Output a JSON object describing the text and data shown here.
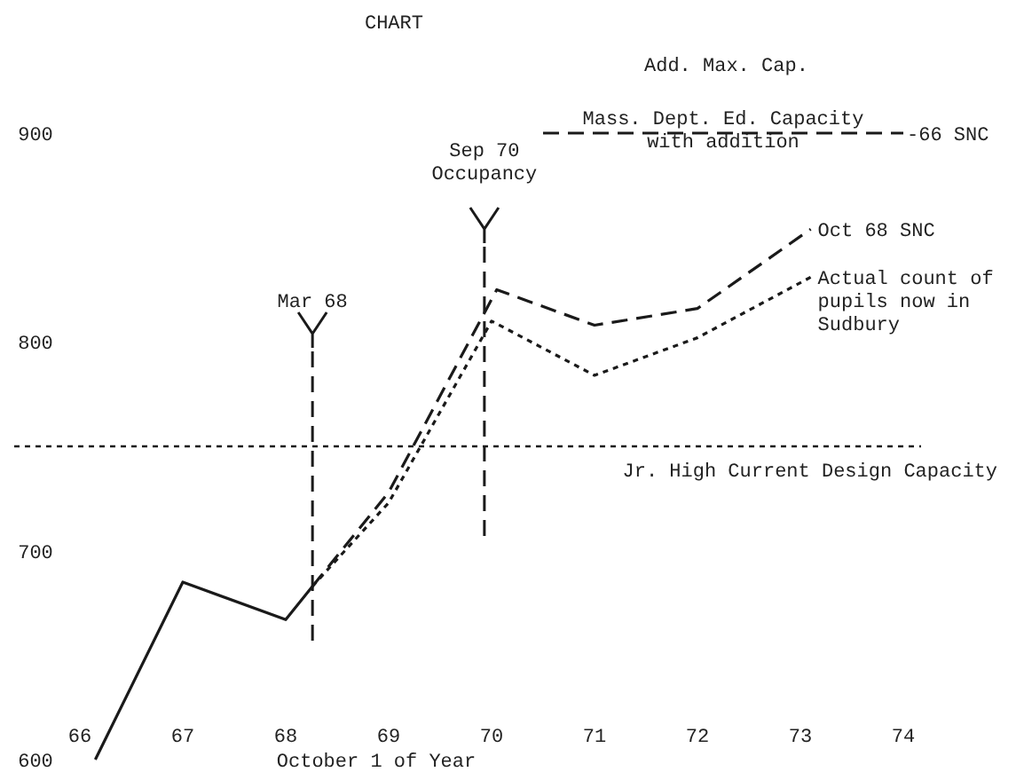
{
  "chart_data": {
    "type": "line",
    "title": "CHART",
    "xlabel": "October 1 of Year",
    "xlim": [
      66,
      74
    ],
    "ylim": [
      600,
      900
    ],
    "xticks": [
      {
        "value": 66,
        "label": "66"
      },
      {
        "value": 67,
        "label": "67"
      },
      {
        "value": 68,
        "label": "68"
      },
      {
        "value": 69,
        "label": "69"
      },
      {
        "value": 70,
        "label": "70"
      },
      {
        "value": 71,
        "label": "71"
      },
      {
        "value": 72,
        "label": "72"
      },
      {
        "value": 73,
        "label": "73"
      },
      {
        "value": 74,
        "label": "74"
      }
    ],
    "yticks": [
      600,
      700,
      800,
      900
    ],
    "grid": false,
    "marker": "none",
    "series": [
      {
        "color": "#1a1a1a",
        "line_style": "solid",
        "x": [
          66.15,
          67,
          68,
          68.26
        ],
        "values": [
          600,
          685,
          667,
          683
        ]
      },
      {
        "name": "Oct 68 SNC",
        "color": "#1a1a1a",
        "line_style": "dashed",
        "x": [
          68.26,
          69,
          70.05,
          71,
          72,
          73.1
        ],
        "values": [
          683,
          728,
          825,
          808,
          816,
          854
        ]
      },
      {
        "name": "Actual count of pupils now in Sudbury",
        "color": "#1a1a1a",
        "line_style": "dotted",
        "x": [
          68.26,
          69,
          70,
          71,
          72,
          73.1
        ],
        "values": [
          683,
          723,
          810,
          784,
          802,
          831
        ]
      },
      {
        "name": "Mass. Dept. Ed. Capacity with addition",
        "color": "#1a1a1a",
        "line_style": "dashed",
        "x": [
          70.5,
          74
        ],
        "values": [
          900,
          900
        ]
      }
    ],
    "ref_lines": [
      {
        "axis": "y",
        "value": 750,
        "label": "Jr. High Current Design Capacity",
        "color": "#1a1a1a",
        "line_style": "dotted"
      },
      {
        "axis": "x",
        "value": 68.26,
        "label": "Mar 68",
        "color": "#1a1a1a",
        "line_style": "dashed"
      },
      {
        "axis": "x",
        "value": 69.93,
        "label": "Sep 70 Occupancy",
        "color": "#1a1a1a",
        "line_style": "dashed"
      }
    ],
    "annotations": [
      "Add. Max. Cap.",
      {
        "text": "-66 SNC",
        "x": 74,
        "y": 900
      }
    ]
  }
}
